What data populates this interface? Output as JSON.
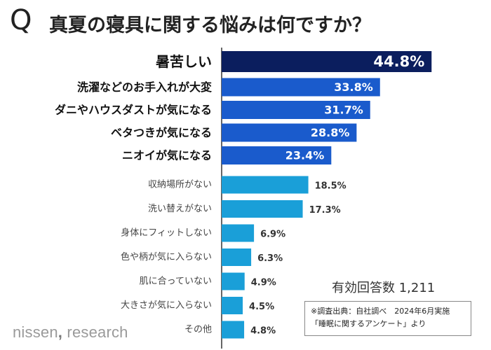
{
  "title": {
    "q": "Q",
    "text": "真夏の寝具に関する悩みは何ですか？"
  },
  "chart_data": {
    "type": "bar",
    "orientation": "horizontal",
    "title": "真夏の寝具に関する悩みは何ですか？",
    "unit": "%",
    "categories": [
      "暑苦しい",
      "洗濯などのお手入れが大変",
      "ダニやハウスダストが気になる",
      "ベタつきが気になる",
      "ニオイが気になる",
      "収納場所がない",
      "洗い替えがない",
      "身体にフィットしない",
      "色や柄が気に入らない",
      "肌に合っていない",
      "大きさが気に入らない",
      "その他"
    ],
    "values": [
      44.8,
      33.8,
      31.7,
      28.8,
      23.4,
      18.5,
      17.3,
      6.9,
      6.3,
      4.9,
      4.5,
      4.8
    ],
    "labels": [
      "44.8%",
      "33.8%",
      "31.7%",
      "28.8%",
      "23.4%",
      "18.5%",
      "17.3%",
      "6.9%",
      "6.3%",
      "4.9%",
      "4.5%",
      "4.8%"
    ],
    "xlim": [
      0,
      50
    ],
    "colors": {
      "top": "#0b1e5e",
      "major": "#1a5bcc",
      "minor": "#1a9fd8"
    }
  },
  "total": "有効回答数 1,211",
  "source": {
    "line1": "※調査出典：自社調べ　2024年6月実施",
    "line2": "「睡眠に関するアンケート」より"
  },
  "logo": {
    "main": "nissen",
    "sep": ",",
    "sub": " research"
  }
}
